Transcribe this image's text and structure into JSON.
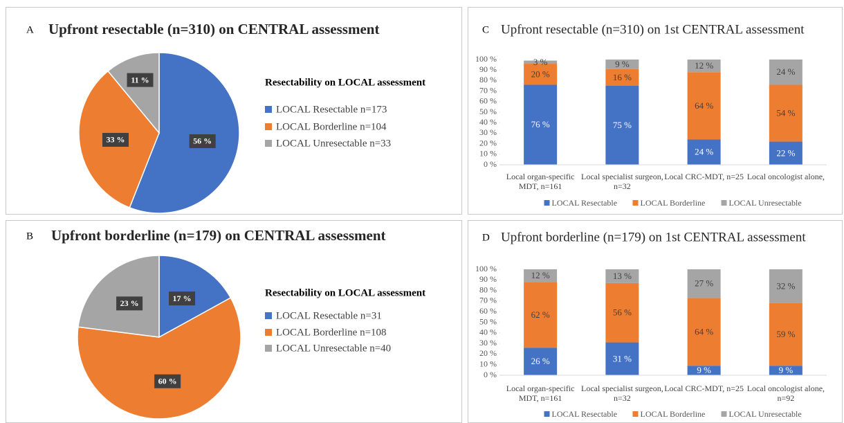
{
  "chart_data": [
    {
      "type": "pie",
      "panel": "A",
      "title": "Upfront resectable (n=310) on CENTRAL assessment",
      "legend_title": "Resectability on LOCAL assessment",
      "categories": [
        "LOCAL Resectable n=173",
        "LOCAL Borderline n=104",
        "LOCAL Unresectable n=33"
      ],
      "values": [
        56,
        33,
        11
      ],
      "value_labels": [
        "56 %",
        "33 %",
        "11 %"
      ],
      "colors": [
        "#4472c4",
        "#ed7d31",
        "#a5a5a5"
      ]
    },
    {
      "type": "pie",
      "panel": "B",
      "title": "Upfront borderline (n=179) on CENTRAL assessment",
      "legend_title": "Resectability on LOCAL assessment",
      "categories": [
        "LOCAL Resectable n=31",
        "LOCAL Borderline n=108",
        "LOCAL Unresectable n=40"
      ],
      "values": [
        17,
        60,
        23
      ],
      "value_labels": [
        "17 %",
        "60 %",
        "23 %"
      ],
      "colors": [
        "#4472c4",
        "#ed7d31",
        "#a5a5a5"
      ]
    },
    {
      "type": "stacked_bar",
      "panel": "C",
      "title": "Upfront resectable (n=310) on 1st CENTRAL assessment",
      "categories": [
        "Local organ-specific MDT, n=161",
        "Local specialist surgeon, n=32",
        "Local CRC-MDT, n=25",
        "Local oncologist alone,"
      ],
      "ylim": [
        0,
        100
      ],
      "yticks": [
        {
          "value": 0,
          "label": "0 %"
        },
        {
          "value": 10,
          "label": "10 %"
        },
        {
          "value": 20,
          "label": "20 %"
        },
        {
          "value": 30,
          "label": "30 %"
        },
        {
          "value": 40,
          "label": "40 %"
        },
        {
          "value": 50,
          "label": "50 %"
        },
        {
          "value": 60,
          "label": "60 %"
        },
        {
          "value": 70,
          "label": "70 %"
        },
        {
          "value": 80,
          "label": "80 %"
        },
        {
          "value": 90,
          "label": "90 %"
        },
        {
          "value": 100,
          "label": "100 %"
        }
      ],
      "series": [
        {
          "name": "LOCAL Resectable",
          "color": "#4472c4",
          "values": [
            76,
            75,
            24,
            22
          ],
          "value_labels": [
            "76 %",
            "75 %",
            "24 %",
            "22 %"
          ]
        },
        {
          "name": "LOCAL Borderline",
          "color": "#ed7d31",
          "values": [
            20,
            16,
            64,
            54
          ],
          "value_labels": [
            "20 %",
            "16 %",
            "64 %",
            "54 %"
          ]
        },
        {
          "name": "LOCAL Unresectable",
          "color": "#a5a5a5",
          "values": [
            3,
            9,
            12,
            24
          ],
          "value_labels": [
            "3 %",
            "9 %",
            "12 %",
            "24 %"
          ]
        }
      ]
    },
    {
      "type": "stacked_bar",
      "panel": "D",
      "title": "Upfront borderline (n=179) on 1st CENTRAL assessment",
      "categories": [
        "Local organ-specific MDT, n=161",
        "Local specialist surgeon, n=32",
        "Local CRC-MDT, n=25",
        "Local oncologist alone, n=92"
      ],
      "ylim": [
        0,
        100
      ],
      "yticks": [
        {
          "value": 0,
          "label": "0 %"
        },
        {
          "value": 10,
          "label": "10 %"
        },
        {
          "value": 20,
          "label": "20 %"
        },
        {
          "value": 30,
          "label": "30 %"
        },
        {
          "value": 40,
          "label": "40 %"
        },
        {
          "value": 50,
          "label": "50 %"
        },
        {
          "value": 60,
          "label": "60 %"
        },
        {
          "value": 70,
          "label": "70 %"
        },
        {
          "value": 80,
          "label": "80 %"
        },
        {
          "value": 90,
          "label": "90 %"
        },
        {
          "value": 100,
          "label": "100 %"
        }
      ],
      "series": [
        {
          "name": "LOCAL Resectable",
          "color": "#4472c4",
          "values": [
            26,
            31,
            9,
            9
          ],
          "value_labels": [
            "26 %",
            "31 %",
            "9 %",
            "9 %"
          ]
        },
        {
          "name": "LOCAL Borderline",
          "color": "#ed7d31",
          "values": [
            62,
            56,
            64,
            59
          ],
          "value_labels": [
            "62 %",
            "56 %",
            "64 %",
            "59 %"
          ]
        },
        {
          "name": "LOCAL Unresectable",
          "color": "#a5a5a5",
          "values": [
            12,
            13,
            27,
            32
          ],
          "value_labels": [
            "12 %",
            "13 %",
            "27 %",
            "32 %"
          ]
        }
      ]
    }
  ]
}
